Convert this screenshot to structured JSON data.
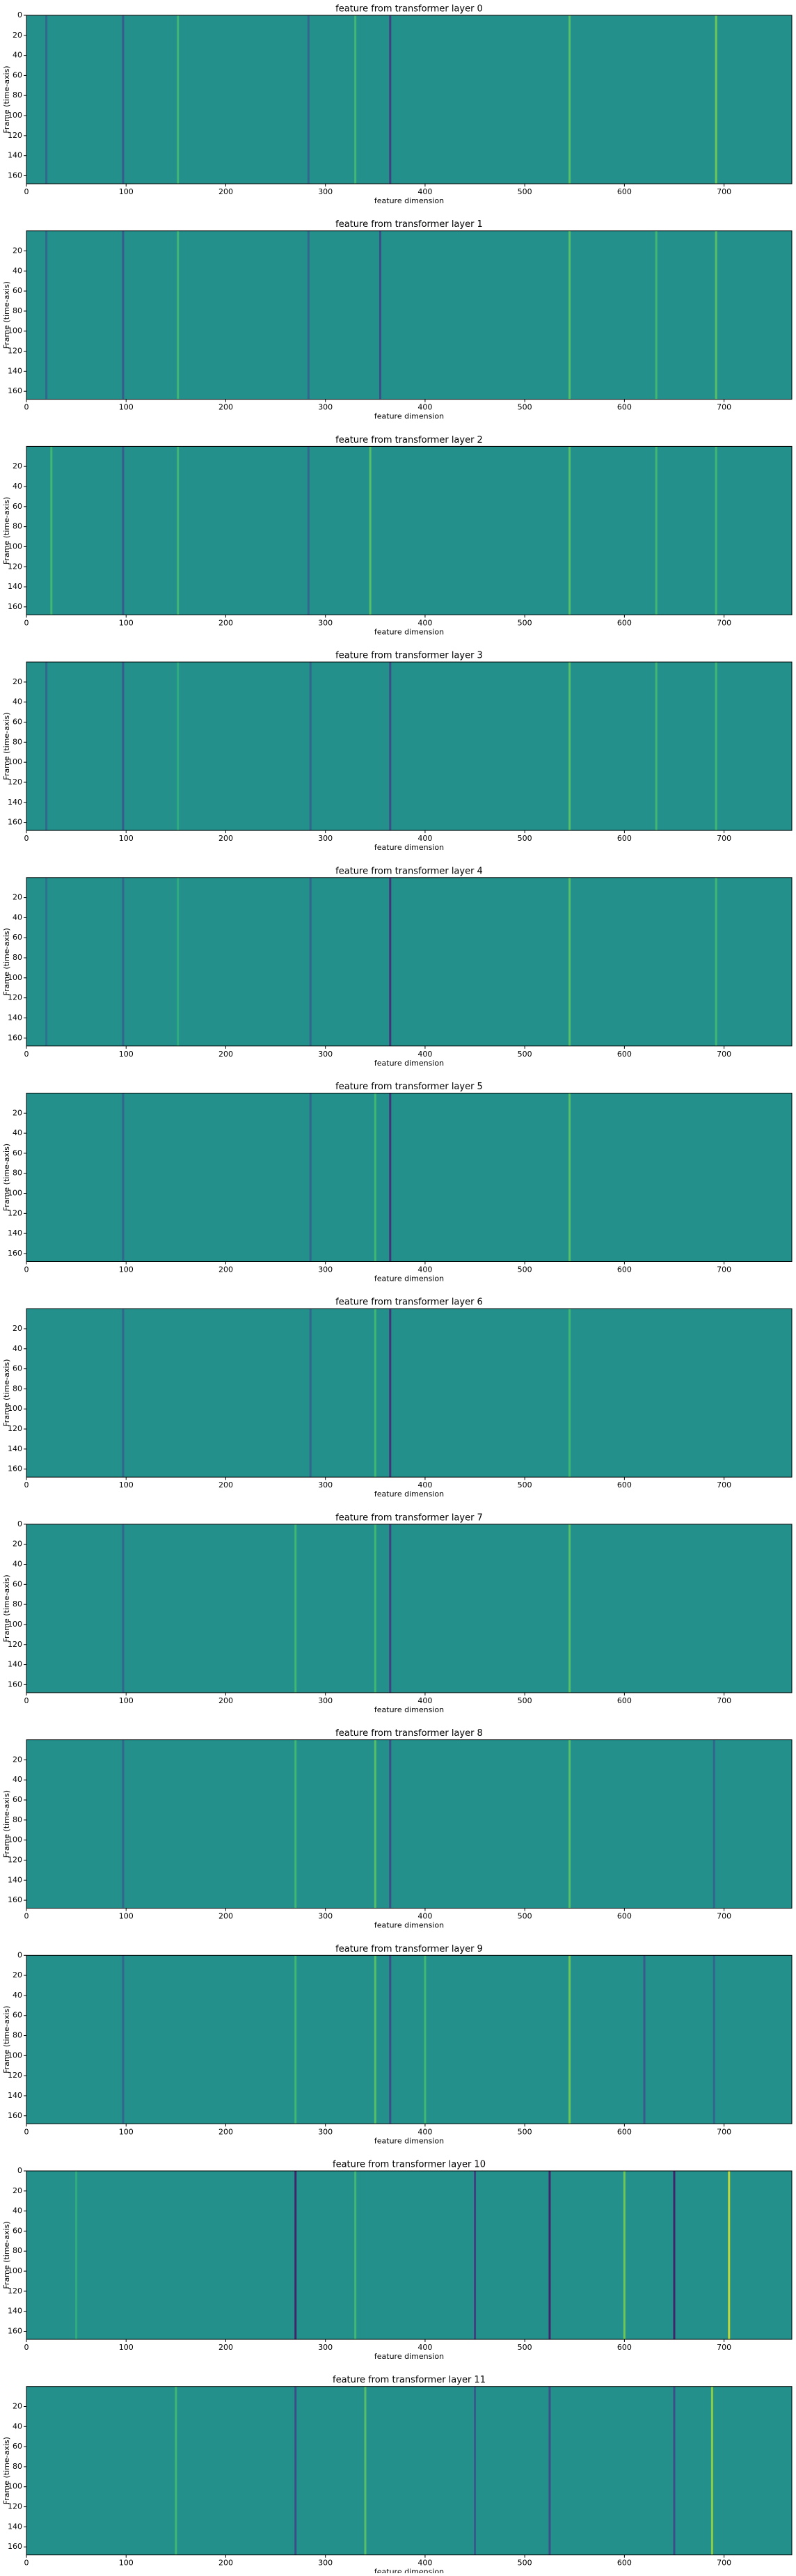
{
  "chart_data": [
    {
      "type": "heatmap",
      "title": "feature from transformer layer 0",
      "xlabel": "feature dimension",
      "ylabel": "Frame (time-axis)",
      "colormap": "viridis",
      "clim": [
        -1,
        1
      ],
      "xlim": [
        0,
        768
      ],
      "ylim": [
        168,
        0
      ],
      "xticks": [
        0,
        100,
        200,
        300,
        400,
        500,
        600,
        700
      ],
      "yticks": [
        0,
        20,
        40,
        60,
        80,
        100,
        120,
        140,
        160
      ],
      "stripes": [
        {
          "x": 20,
          "value": -0.4
        },
        {
          "x": 97,
          "value": -0.5
        },
        {
          "x": 152,
          "value": 0.4
        },
        {
          "x": 283,
          "value": -0.4
        },
        {
          "x": 330,
          "value": 0.4
        },
        {
          "x": 365,
          "value": -0.7
        },
        {
          "x": 545,
          "value": 0.5
        },
        {
          "x": 692,
          "value": 0.6
        }
      ]
    },
    {
      "type": "heatmap",
      "title": "feature from transformer layer 1",
      "xlabel": "feature dimension",
      "ylabel": "Frame (time-axis)",
      "colormap": "viridis",
      "clim": [
        -1,
        1
      ],
      "xlim": [
        0,
        768
      ],
      "ylim": [
        168,
        0
      ],
      "xticks": [
        0,
        100,
        200,
        300,
        400,
        500,
        600,
        700
      ],
      "yticks": [
        20,
        40,
        60,
        80,
        100,
        120,
        140,
        160
      ],
      "stripes": [
        {
          "x": 20,
          "value": -0.4
        },
        {
          "x": 97,
          "value": -0.5
        },
        {
          "x": 152,
          "value": 0.4
        },
        {
          "x": 283,
          "value": -0.4
        },
        {
          "x": 355,
          "value": -0.6
        },
        {
          "x": 545,
          "value": 0.5
        },
        {
          "x": 632,
          "value": 0.4
        },
        {
          "x": 692,
          "value": 0.5
        }
      ]
    },
    {
      "type": "heatmap",
      "title": "feature from transformer layer 2",
      "xlabel": "feature dimension",
      "ylabel": "Frame (time-axis)",
      "colormap": "viridis",
      "clim": [
        -1,
        1
      ],
      "xlim": [
        0,
        768
      ],
      "ylim": [
        168,
        0
      ],
      "xticks": [
        0,
        100,
        200,
        300,
        400,
        500,
        600,
        700
      ],
      "yticks": [
        20,
        40,
        60,
        80,
        100,
        120,
        140,
        160
      ],
      "stripes": [
        {
          "x": 25,
          "value": 0.4
        },
        {
          "x": 97,
          "value": -0.5
        },
        {
          "x": 152,
          "value": 0.4
        },
        {
          "x": 283,
          "value": -0.4
        },
        {
          "x": 345,
          "value": 0.5
        },
        {
          "x": 545,
          "value": 0.5
        },
        {
          "x": 632,
          "value": 0.4
        },
        {
          "x": 692,
          "value": 0.4
        }
      ]
    },
    {
      "type": "heatmap",
      "title": "feature from transformer layer 3",
      "xlabel": "feature dimension",
      "ylabel": "Frame (time-axis)",
      "colormap": "viridis",
      "clim": [
        -1,
        1
      ],
      "xlim": [
        0,
        768
      ],
      "ylim": [
        168,
        0
      ],
      "xticks": [
        0,
        100,
        200,
        300,
        400,
        500,
        600,
        700
      ],
      "yticks": [
        20,
        40,
        60,
        80,
        100,
        120,
        140,
        160
      ],
      "stripes": [
        {
          "x": 20,
          "value": -0.4
        },
        {
          "x": 97,
          "value": -0.5
        },
        {
          "x": 152,
          "value": 0.3
        },
        {
          "x": 285,
          "value": -0.4
        },
        {
          "x": 365,
          "value": -0.6
        },
        {
          "x": 545,
          "value": 0.5
        },
        {
          "x": 632,
          "value": 0.4
        },
        {
          "x": 692,
          "value": 0.4
        }
      ]
    },
    {
      "type": "heatmap",
      "title": "feature from transformer layer 4",
      "xlabel": "feature dimension",
      "ylabel": "Frame (time-axis)",
      "colormap": "viridis",
      "clim": [
        -1,
        1
      ],
      "xlim": [
        0,
        768
      ],
      "ylim": [
        168,
        0
      ],
      "xticks": [
        0,
        100,
        200,
        300,
        400,
        500,
        600,
        700
      ],
      "yticks": [
        20,
        40,
        60,
        80,
        100,
        120,
        140,
        160
      ],
      "stripes": [
        {
          "x": 20,
          "value": -0.3
        },
        {
          "x": 97,
          "value": -0.4
        },
        {
          "x": 152,
          "value": 0.3
        },
        {
          "x": 285,
          "value": -0.4
        },
        {
          "x": 365,
          "value": -0.8
        },
        {
          "x": 545,
          "value": 0.5
        },
        {
          "x": 692,
          "value": 0.4
        }
      ]
    },
    {
      "type": "heatmap",
      "title": "feature from transformer layer 5",
      "xlabel": "feature dimension",
      "ylabel": "Frame (time-axis)",
      "colormap": "viridis",
      "clim": [
        -1,
        1
      ],
      "xlim": [
        0,
        768
      ],
      "ylim": [
        168,
        0
      ],
      "xticks": [
        0,
        100,
        200,
        300,
        400,
        500,
        600,
        700
      ],
      "yticks": [
        20,
        40,
        60,
        80,
        100,
        120,
        140,
        160
      ],
      "stripes": [
        {
          "x": 97,
          "value": -0.4
        },
        {
          "x": 285,
          "value": -0.4
        },
        {
          "x": 350,
          "value": 0.4
        },
        {
          "x": 365,
          "value": -0.8
        },
        {
          "x": 545,
          "value": 0.5
        }
      ]
    },
    {
      "type": "heatmap",
      "title": "feature from transformer layer 6",
      "xlabel": "feature dimension",
      "ylabel": "Frame (time-axis)",
      "colormap": "viridis",
      "clim": [
        -1,
        1
      ],
      "xlim": [
        0,
        768
      ],
      "ylim": [
        168,
        0
      ],
      "xticks": [
        0,
        100,
        200,
        300,
        400,
        500,
        600,
        700
      ],
      "yticks": [
        20,
        40,
        60,
        80,
        100,
        120,
        140,
        160
      ],
      "stripes": [
        {
          "x": 97,
          "value": -0.4
        },
        {
          "x": 285,
          "value": -0.4
        },
        {
          "x": 350,
          "value": 0.4
        },
        {
          "x": 365,
          "value": -0.8
        },
        {
          "x": 545,
          "value": 0.4
        }
      ]
    },
    {
      "type": "heatmap",
      "title": "feature from transformer layer 7",
      "xlabel": "feature dimension",
      "ylabel": "Frame (time-axis)",
      "colormap": "viridis",
      "clim": [
        -1,
        1
      ],
      "xlim": [
        0,
        768
      ],
      "ylim": [
        168,
        0
      ],
      "xticks": [
        0,
        100,
        200,
        300,
        400,
        500,
        600,
        700
      ],
      "yticks": [
        0,
        20,
        40,
        60,
        80,
        100,
        120,
        140,
        160
      ],
      "stripes": [
        {
          "x": 97,
          "value": -0.4
        },
        {
          "x": 270,
          "value": 0.4
        },
        {
          "x": 350,
          "value": 0.4
        },
        {
          "x": 365,
          "value": -0.7
        },
        {
          "x": 545,
          "value": 0.5
        }
      ]
    },
    {
      "type": "heatmap",
      "title": "feature from transformer layer 8",
      "xlabel": "feature dimension",
      "ylabel": "Frame (time-axis)",
      "colormap": "viridis",
      "clim": [
        -1,
        1
      ],
      "xlim": [
        0,
        768
      ],
      "ylim": [
        168,
        0
      ],
      "xticks": [
        0,
        100,
        200,
        300,
        400,
        500,
        600,
        700
      ],
      "yticks": [
        20,
        40,
        60,
        80,
        100,
        120,
        140,
        160
      ],
      "stripes": [
        {
          "x": 97,
          "value": -0.4
        },
        {
          "x": 270,
          "value": 0.4
        },
        {
          "x": 350,
          "value": 0.5
        },
        {
          "x": 365,
          "value": -0.6
        },
        {
          "x": 545,
          "value": 0.5
        },
        {
          "x": 690,
          "value": -0.4
        }
      ]
    },
    {
      "type": "heatmap",
      "title": "feature from transformer layer 9",
      "xlabel": "feature dimension",
      "ylabel": "Frame (time-axis)",
      "colormap": "viridis",
      "clim": [
        -1,
        1
      ],
      "xlim": [
        0,
        768
      ],
      "ylim": [
        168,
        0
      ],
      "xticks": [
        0,
        100,
        200,
        300,
        400,
        500,
        600,
        700
      ],
      "yticks": [
        0,
        20,
        40,
        60,
        80,
        100,
        120,
        140,
        160
      ],
      "stripes": [
        {
          "x": 97,
          "value": -0.4
        },
        {
          "x": 270,
          "value": 0.4
        },
        {
          "x": 350,
          "value": 0.5
        },
        {
          "x": 365,
          "value": -0.6
        },
        {
          "x": 400,
          "value": 0.4
        },
        {
          "x": 545,
          "value": 0.6
        },
        {
          "x": 620,
          "value": -0.5
        },
        {
          "x": 690,
          "value": -0.4
        }
      ]
    },
    {
      "type": "heatmap",
      "title": "feature from transformer layer 10",
      "xlabel": "feature dimension",
      "ylabel": "Frame (time-axis)",
      "colormap": "viridis",
      "clim": [
        -1,
        1
      ],
      "xlim": [
        0,
        768
      ],
      "ylim": [
        168,
        0
      ],
      "xticks": [
        0,
        100,
        200,
        300,
        400,
        500,
        600,
        700
      ],
      "yticks": [
        0,
        20,
        40,
        60,
        80,
        100,
        120,
        140,
        160
      ],
      "stripes": [
        {
          "x": 50,
          "value": 0.3
        },
        {
          "x": 270,
          "value": -0.9
        },
        {
          "x": 330,
          "value": 0.4
        },
        {
          "x": 450,
          "value": -0.7
        },
        {
          "x": 525,
          "value": -0.9
        },
        {
          "x": 600,
          "value": 0.6
        },
        {
          "x": 650,
          "value": -0.9
        },
        {
          "x": 705,
          "value": 0.9
        }
      ]
    },
    {
      "type": "heatmap",
      "title": "feature from transformer layer 11",
      "xlabel": "feature dimension",
      "ylabel": "Frame (time-axis)",
      "colormap": "viridis",
      "clim": [
        -1,
        1
      ],
      "xlim": [
        0,
        768
      ],
      "ylim": [
        168,
        0
      ],
      "xticks": [
        0,
        100,
        200,
        300,
        400,
        500,
        600,
        700
      ],
      "yticks": [
        20,
        40,
        60,
        80,
        100,
        120,
        140,
        160
      ],
      "stripes": [
        {
          "x": 150,
          "value": 0.4
        },
        {
          "x": 270,
          "value": -0.6
        },
        {
          "x": 340,
          "value": 0.5
        },
        {
          "x": 450,
          "value": -0.5
        },
        {
          "x": 525,
          "value": -0.6
        },
        {
          "x": 650,
          "value": -0.6
        },
        {
          "x": 688,
          "value": 0.7
        }
      ]
    }
  ]
}
